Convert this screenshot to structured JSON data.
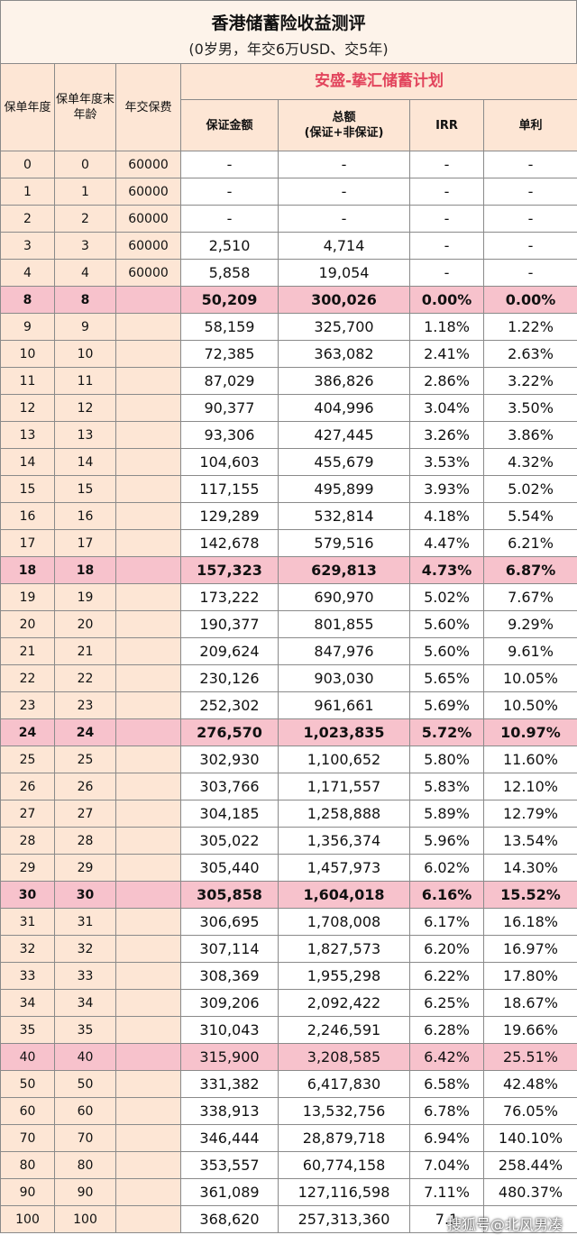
{
  "title": "香港储蓄险收益测评",
  "subtitle": "(0岁男，年交6万USD、交5年)",
  "headers": {
    "policy_year": "保单年度",
    "age": "保单年度末年龄",
    "premium": "年交保费",
    "plan_name": "安盛-挚汇储蓄计划",
    "guaranteed": "保证金额",
    "total": "总额",
    "total_sub": "(保证+非保证)",
    "irr": "IRR",
    "simple": "单利"
  },
  "rows": [
    {
      "year": "0",
      "age": "0",
      "premium": "60000",
      "guaranteed": "-",
      "total": "-",
      "irr": "-",
      "simple": "-",
      "style": ""
    },
    {
      "year": "1",
      "age": "1",
      "premium": "60000",
      "guaranteed": "-",
      "total": "-",
      "irr": "-",
      "simple": "-",
      "style": ""
    },
    {
      "year": "2",
      "age": "2",
      "premium": "60000",
      "guaranteed": "-",
      "total": "-",
      "irr": "-",
      "simple": "-",
      "style": ""
    },
    {
      "year": "3",
      "age": "3",
      "premium": "60000",
      "guaranteed": "2,510",
      "total": "4,714",
      "irr": "-",
      "simple": "-",
      "style": ""
    },
    {
      "year": "4",
      "age": "4",
      "premium": "60000",
      "guaranteed": "5,858",
      "total": "19,054",
      "irr": "-",
      "simple": "-",
      "style": ""
    },
    {
      "year": "8",
      "age": "8",
      "premium": "",
      "guaranteed": "50,209",
      "total": "300,026",
      "irr": "0.00%",
      "simple": "0.00%",
      "style": "hl"
    },
    {
      "year": "9",
      "age": "9",
      "premium": "",
      "guaranteed": "58,159",
      "total": "325,700",
      "irr": "1.18%",
      "simple": "1.22%",
      "style": ""
    },
    {
      "year": "10",
      "age": "10",
      "premium": "",
      "guaranteed": "72,385",
      "total": "363,082",
      "irr": "2.41%",
      "simple": "2.63%",
      "style": ""
    },
    {
      "year": "11",
      "age": "11",
      "premium": "",
      "guaranteed": "87,029",
      "total": "386,826",
      "irr": "2.86%",
      "simple": "3.22%",
      "style": ""
    },
    {
      "year": "12",
      "age": "12",
      "premium": "",
      "guaranteed": "90,377",
      "total": "404,996",
      "irr": "3.04%",
      "simple": "3.50%",
      "style": ""
    },
    {
      "year": "13",
      "age": "13",
      "premium": "",
      "guaranteed": "93,306",
      "total": "427,445",
      "irr": "3.26%",
      "simple": "3.86%",
      "style": ""
    },
    {
      "year": "14",
      "age": "14",
      "premium": "",
      "guaranteed": "104,603",
      "total": "455,679",
      "irr": "3.53%",
      "simple": "4.32%",
      "style": ""
    },
    {
      "year": "15",
      "age": "15",
      "premium": "",
      "guaranteed": "117,155",
      "total": "495,899",
      "irr": "3.93%",
      "simple": "5.02%",
      "style": ""
    },
    {
      "year": "16",
      "age": "16",
      "premium": "",
      "guaranteed": "129,289",
      "total": "532,814",
      "irr": "4.18%",
      "simple": "5.54%",
      "style": ""
    },
    {
      "year": "17",
      "age": "17",
      "premium": "",
      "guaranteed": "142,678",
      "total": "579,516",
      "irr": "4.47%",
      "simple": "6.21%",
      "style": ""
    },
    {
      "year": "18",
      "age": "18",
      "premium": "",
      "guaranteed": "157,323",
      "total": "629,813",
      "irr": "4.73%",
      "simple": "6.87%",
      "style": "hl"
    },
    {
      "year": "19",
      "age": "19",
      "premium": "",
      "guaranteed": "173,222",
      "total": "690,970",
      "irr": "5.02%",
      "simple": "7.67%",
      "style": ""
    },
    {
      "year": "20",
      "age": "20",
      "premium": "",
      "guaranteed": "190,377",
      "total": "801,855",
      "irr": "5.60%",
      "simple": "9.29%",
      "style": ""
    },
    {
      "year": "21",
      "age": "21",
      "premium": "",
      "guaranteed": "209,624",
      "total": "847,976",
      "irr": "5.60%",
      "simple": "9.61%",
      "style": ""
    },
    {
      "year": "22",
      "age": "22",
      "premium": "",
      "guaranteed": "230,126",
      "total": "903,030",
      "irr": "5.65%",
      "simple": "10.05%",
      "style": ""
    },
    {
      "year": "23",
      "age": "23",
      "premium": "",
      "guaranteed": "252,302",
      "total": "961,661",
      "irr": "5.69%",
      "simple": "10.50%",
      "style": ""
    },
    {
      "year": "24",
      "age": "24",
      "premium": "",
      "guaranteed": "276,570",
      "total": "1,023,835",
      "irr": "5.72%",
      "simple": "10.97%",
      "style": "hl"
    },
    {
      "year": "25",
      "age": "25",
      "premium": "",
      "guaranteed": "302,930",
      "total": "1,100,652",
      "irr": "5.80%",
      "simple": "11.60%",
      "style": ""
    },
    {
      "year": "26",
      "age": "26",
      "premium": "",
      "guaranteed": "303,766",
      "total": "1,171,557",
      "irr": "5.83%",
      "simple": "12.10%",
      "style": ""
    },
    {
      "year": "27",
      "age": "27",
      "premium": "",
      "guaranteed": "304,185",
      "total": "1,258,888",
      "irr": "5.89%",
      "simple": "12.79%",
      "style": ""
    },
    {
      "year": "28",
      "age": "28",
      "premium": "",
      "guaranteed": "305,022",
      "total": "1,356,374",
      "irr": "5.96%",
      "simple": "13.54%",
      "style": ""
    },
    {
      "year": "29",
      "age": "29",
      "premium": "",
      "guaranteed": "305,440",
      "total": "1,457,973",
      "irr": "6.02%",
      "simple": "14.30%",
      "style": ""
    },
    {
      "year": "30",
      "age": "30",
      "premium": "",
      "guaranteed": "305,858",
      "total": "1,604,018",
      "irr": "6.16%",
      "simple": "15.52%",
      "style": "hl"
    },
    {
      "year": "31",
      "age": "31",
      "premium": "",
      "guaranteed": "306,695",
      "total": "1,708,008",
      "irr": "6.17%",
      "simple": "16.18%",
      "style": ""
    },
    {
      "year": "32",
      "age": "32",
      "premium": "",
      "guaranteed": "307,114",
      "total": "1,827,573",
      "irr": "6.20%",
      "simple": "16.97%",
      "style": ""
    },
    {
      "year": "33",
      "age": "33",
      "premium": "",
      "guaranteed": "308,369",
      "total": "1,955,298",
      "irr": "6.22%",
      "simple": "17.80%",
      "style": ""
    },
    {
      "year": "34",
      "age": "34",
      "premium": "",
      "guaranteed": "309,206",
      "total": "2,092,422",
      "irr": "6.25%",
      "simple": "18.67%",
      "style": ""
    },
    {
      "year": "35",
      "age": "35",
      "premium": "",
      "guaranteed": "310,043",
      "total": "2,246,591",
      "irr": "6.28%",
      "simple": "19.66%",
      "style": ""
    },
    {
      "year": "40",
      "age": "40",
      "premium": "",
      "guaranteed": "315,900",
      "total": "3,208,585",
      "irr": "6.42%",
      "simple": "25.51%",
      "style": "hl2"
    },
    {
      "year": "50",
      "age": "50",
      "premium": "",
      "guaranteed": "331,382",
      "total": "6,417,830",
      "irr": "6.58%",
      "simple": "42.48%",
      "style": ""
    },
    {
      "year": "60",
      "age": "60",
      "premium": "",
      "guaranteed": "338,913",
      "total": "13,532,756",
      "irr": "6.78%",
      "simple": "76.05%",
      "style": ""
    },
    {
      "year": "70",
      "age": "70",
      "premium": "",
      "guaranteed": "346,444",
      "total": "28,879,718",
      "irr": "6.94%",
      "simple": "140.10%",
      "style": ""
    },
    {
      "year": "80",
      "age": "80",
      "premium": "",
      "guaranteed": "353,557",
      "total": "60,774,158",
      "irr": "7.04%",
      "simple": "258.44%",
      "style": ""
    },
    {
      "year": "90",
      "age": "90",
      "premium": "",
      "guaranteed": "361,089",
      "total": "127,116,598",
      "irr": "7.11%",
      "simple": "480.37%",
      "style": ""
    },
    {
      "year": "100",
      "age": "100",
      "premium": "",
      "guaranteed": "368,620",
      "total": "257,313,360",
      "irr": "7.1",
      "simple": "",
      "style": ""
    }
  ],
  "watermark": "搜狐号@北风男凑"
}
